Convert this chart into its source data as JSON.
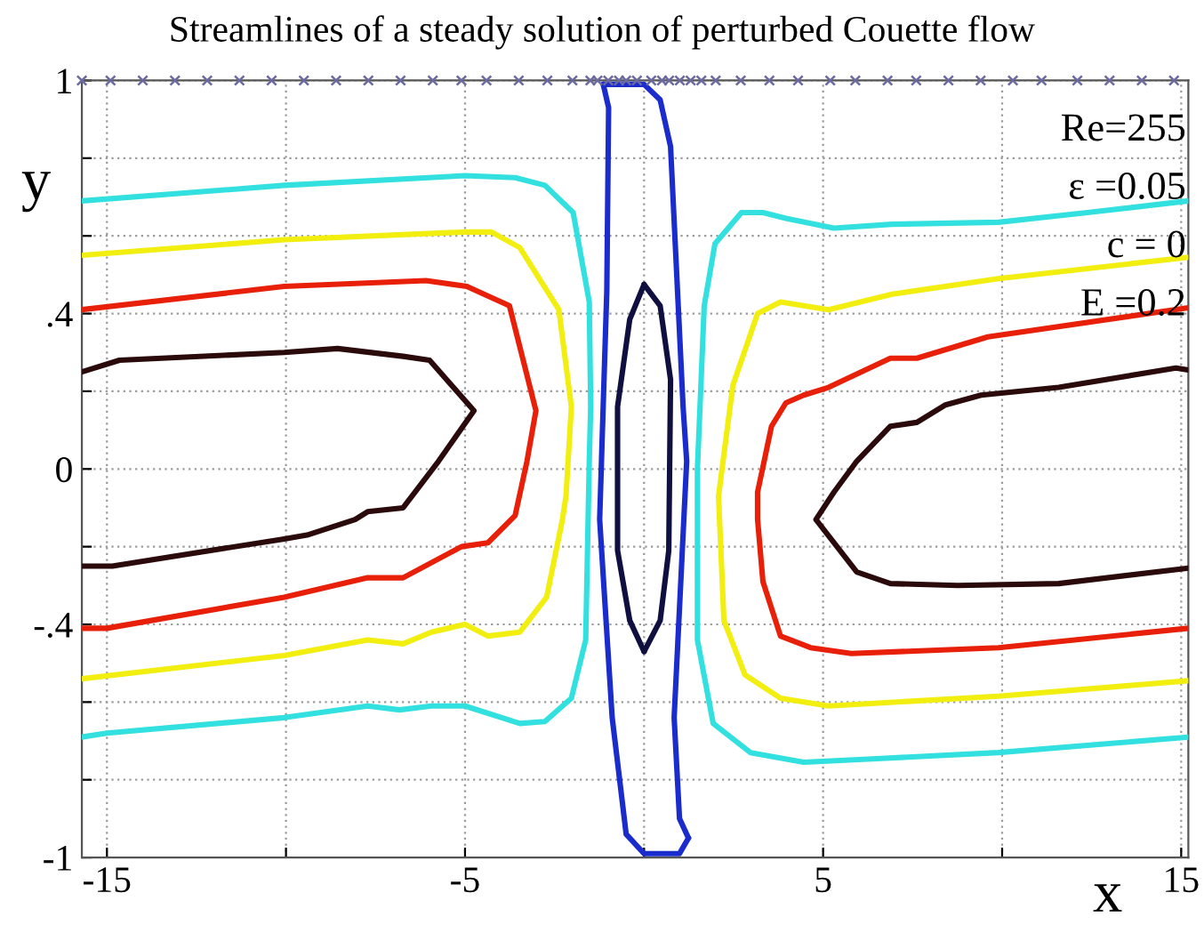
{
  "chart_data": {
    "type": "line",
    "title": "Streamlines of a steady solution of perturbed Couette flow",
    "xlabel": "x",
    "ylabel": "y",
    "annotations": [
      "Re=255",
      "ε =0.05",
      "c = 0",
      "E =0.2"
    ],
    "xlim": [
      -15.7,
      15.2
    ],
    "ylim": [
      -1,
      1
    ],
    "xticks": [
      -15,
      {
        "value": -10,
        "label": null
      },
      -5,
      {
        "value": 0,
        "label": null
      },
      5,
      {
        "value": 10,
        "label": null
      },
      15
    ],
    "yticks": [
      -1,
      {
        "value": -0.8,
        "label": null
      },
      {
        "value": -0.6,
        "label": null
      },
      {
        "value": -0.4,
        "label": "-.4"
      },
      {
        "value": -0.2,
        "label": null
      },
      0,
      {
        "value": 0.2,
        "label": null
      },
      {
        "value": 0.4,
        "label": ".4"
      },
      {
        "value": 0.6,
        "label": null
      },
      {
        "value": 0.8,
        "label": null
      },
      1
    ],
    "grid": true,
    "line_style": "solid",
    "series": [
      {
        "color": "#33e0e0",
        "x": [
          -15.7,
          -10.05,
          -5,
          -3.6,
          -2.77,
          -1.98,
          -1.53,
          -1.49,
          -1.53,
          -1.63,
          -2.03,
          -2.77,
          -3.47,
          -5.0,
          -5.94,
          -6.83,
          -7.72,
          -10.05,
          -15,
          -15.7
        ],
        "values": [
          0.69,
          0.73,
          0.755,
          0.75,
          0.73,
          0.66,
          0.43,
          0.16,
          0.02,
          -0.44,
          -0.59,
          -0.65,
          -0.655,
          -0.61,
          -0.61,
          -0.62,
          -0.61,
          -0.64,
          -0.68,
          -0.69
        ]
      },
      {
        "color": "#f2ee10",
        "x": [
          -15.7,
          -10.05,
          -5,
          -4.26,
          -3.47,
          -2.38,
          -2.03,
          -2.18,
          -2.28,
          -2.72,
          -3.47,
          -4.36,
          -5,
          -5.94,
          -6.73,
          -7.72,
          -10.05,
          -15.7
        ],
        "values": [
          0.55,
          0.59,
          0.61,
          0.61,
          0.57,
          0.41,
          0.16,
          -0.07,
          -0.13,
          -0.33,
          -0.42,
          -0.43,
          -0.4,
          -0.42,
          -0.45,
          -0.44,
          -0.48,
          -0.54
        ]
      },
      {
        "color": "#e8200a",
        "x": [
          -15.7,
          -10.05,
          -6.09,
          -4.95,
          -3.76,
          -3.02,
          -3.27,
          -3.6,
          -4.36,
          -5.1,
          -6.73,
          -7.72,
          -10.05,
          -15,
          -15.7
        ],
        "values": [
          0.41,
          0.47,
          0.485,
          0.47,
          0.42,
          0.15,
          0.02,
          -0.12,
          -0.19,
          -0.2,
          -0.28,
          -0.28,
          -0.33,
          -0.41,
          -0.41
        ]
      },
      {
        "color": "#2a0a0a",
        "x": [
          -15.7,
          -14.65,
          -10.05,
          -8.56,
          -6.73,
          -5.99,
          -4.75,
          -5.74,
          -6.44,
          -6.73,
          -7.72,
          -8.07,
          -9.41,
          -10.05,
          -14.85,
          -15.7
        ],
        "values": [
          0.25,
          0.28,
          0.3,
          0.31,
          0.29,
          0.28,
          0.15,
          0.02,
          -0.065,
          -0.1,
          -0.11,
          -0.13,
          -0.17,
          -0.18,
          -0.25,
          -0.25
        ]
      },
      {
        "color": "#1a2ccc",
        "x": [
          -1.14,
          -0.99,
          -1.04,
          -1.24,
          -0.89,
          -0.5,
          0,
          0.99,
          1.24
        ],
        "values": [
          0.99,
          0.93,
          0.46,
          -0.13,
          -0.64,
          -0.94,
          -0.99,
          -0.99,
          -0.95
        ]
      },
      {
        "color": "#1a2ccc",
        "x": [
          1.24,
          0.99,
          0.84,
          1.19,
          1.09,
          0.74,
          0.45,
          0,
          -1.14
        ],
        "values": [
          -0.95,
          -0.9,
          -0.64,
          0.02,
          0.16,
          0.83,
          0.95,
          0.99,
          0.99
        ]
      },
      {
        "color": "#101040",
        "x": [
          0,
          -0.4,
          -0.74,
          -0.74,
          -0.4,
          0
        ],
        "values": [
          0.475,
          0.385,
          0.16,
          -0.21,
          -0.39,
          -0.47
        ]
      },
      {
        "color": "#101040",
        "x": [
          0,
          0.45,
          0.69,
          0.74,
          0.45,
          0
        ],
        "values": [
          -0.47,
          -0.39,
          -0.21,
          0.23,
          0.42,
          0.475
        ]
      },
      {
        "color": "#33e0e0",
        "x": [
          15.2,
          9.9,
          6.63,
          4.46,
          2.97,
          1.93,
          1.49,
          1.49,
          1.68,
          1.98,
          2.72,
          3.32,
          3.96,
          5.3,
          6.93,
          9.9,
          12.38,
          15.2
        ],
        "values": [
          -0.69,
          -0.73,
          -0.745,
          -0.755,
          -0.73,
          -0.655,
          -0.44,
          0.0,
          0.42,
          0.58,
          0.66,
          0.66,
          0.645,
          0.62,
          0.63,
          0.635,
          0.66,
          0.69
        ]
      },
      {
        "color": "#f2ee10",
        "x": [
          15.2,
          9.9,
          5.15,
          3.81,
          2.82,
          2.23,
          2.08,
          2.48,
          3.17,
          3.81,
          5.15,
          6.93,
          9.9,
          15.2
        ],
        "values": [
          -0.545,
          -0.585,
          -0.61,
          -0.59,
          -0.53,
          -0.39,
          -0.07,
          0.215,
          0.4,
          0.43,
          0.41,
          0.45,
          0.49,
          0.545
        ]
      },
      {
        "color": "#e8200a",
        "x": [
          15.2,
          9.9,
          5.79,
          4.65,
          3.81,
          3.32,
          3.17,
          3.17,
          3.56,
          3.96,
          4.46,
          5.15,
          6.88,
          7.62,
          9.6,
          15.2
        ],
        "values": [
          -0.41,
          -0.46,
          -0.475,
          -0.46,
          -0.43,
          -0.29,
          -0.13,
          -0.06,
          0.11,
          0.17,
          0.19,
          0.21,
          0.285,
          0.285,
          0.34,
          0.415
        ]
      },
      {
        "color": "#2a0a0a",
        "x": [
          15.2,
          11.58,
          8.76,
          6.88,
          5.94,
          4.8,
          5.3,
          5.94,
          6.88,
          7.62,
          8.42,
          9.41,
          11.58,
          14.85,
          15.2
        ],
        "values": [
          -0.255,
          -0.295,
          -0.3,
          -0.295,
          -0.265,
          -0.13,
          -0.06,
          0.02,
          0.11,
          0.12,
          0.165,
          0.19,
          0.21,
          0.26,
          0.255
        ]
      },
      {
        "type": "scatter",
        "marker": "cross",
        "color": "#6a6aa0",
        "x": [
          -15.7,
          -14.9,
          -14.0,
          -13.1,
          -12.2,
          -11.3,
          -10.4,
          -9.5,
          -8.6,
          -7.7,
          -6.8,
          -5.9,
          -5.1,
          -4.4,
          -3.5,
          -2.7,
          -2.0,
          -1.5,
          -1.3,
          -1.0,
          -0.7,
          -0.5,
          -0.2,
          0.2,
          0.5,
          0.7,
          1.0,
          1.3,
          1.6,
          2.0,
          2.7,
          3.5,
          4.3,
          5.2,
          5.9,
          6.8,
          7.6,
          8.5,
          9.4,
          10.3,
          11.1,
          12.1,
          13.0,
          13.9,
          14.8
        ],
        "values": [
          1,
          1,
          1,
          1,
          1,
          1,
          1,
          1,
          1,
          1,
          1,
          1,
          1,
          1,
          1,
          1,
          1,
          1,
          1,
          1,
          1,
          1,
          1,
          1,
          1,
          1,
          1,
          1,
          1,
          1,
          1,
          1,
          1,
          1,
          1,
          1,
          1,
          1,
          1,
          1,
          1,
          1,
          1,
          1,
          1
        ]
      }
    ]
  }
}
